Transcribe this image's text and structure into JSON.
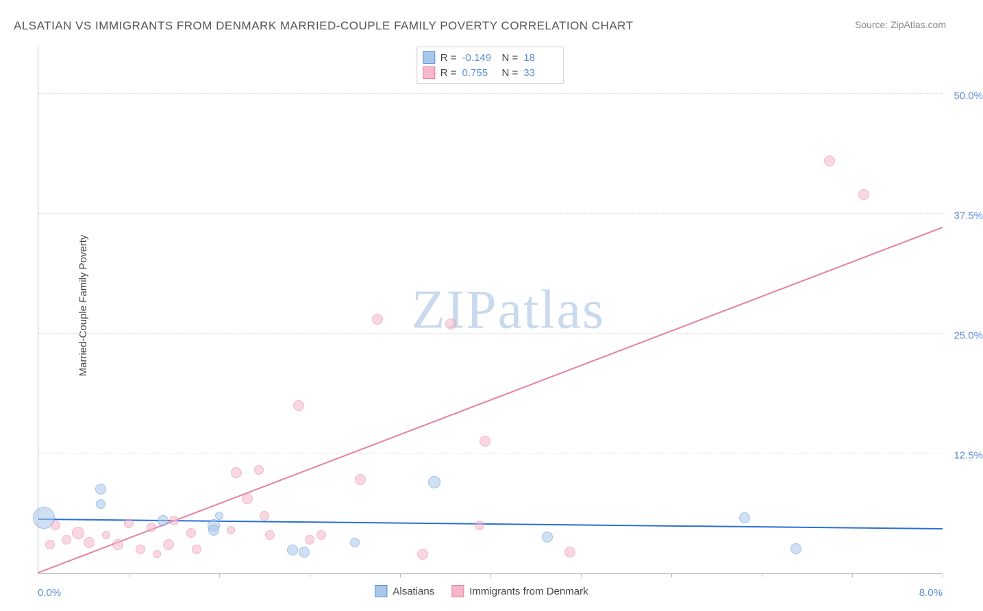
{
  "title": "ALSATIAN VS IMMIGRANTS FROM DENMARK MARRIED-COUPLE FAMILY POVERTY CORRELATION CHART",
  "source": "Source: ZipAtlas.com",
  "watermark": "ZIPatlas",
  "y_axis_title": "Married-Couple Family Poverty",
  "chart": {
    "type": "scatter",
    "xlim": [
      0,
      8.0
    ],
    "ylim": [
      0,
      55.0
    ],
    "x_origin_label": "0.0%",
    "x_max_label": "8.0%",
    "y_ticks": [
      {
        "pos": 12.5,
        "label": "12.5%"
      },
      {
        "pos": 25.0,
        "label": "25.0%"
      },
      {
        "pos": 37.5,
        "label": "37.5%"
      },
      {
        "pos": 50.0,
        "label": "50.0%"
      }
    ],
    "x_tick_positions": [
      0.8,
      1.6,
      2.4,
      3.2,
      4.0,
      4.8,
      5.6,
      6.4,
      7.2,
      8.0
    ],
    "background_color": "#ffffff",
    "grid_color": "#dddddd",
    "series": [
      {
        "name": "Alsatians",
        "fill": "#a9c7eb",
        "stroke": "#5b8dd6",
        "fill_opacity": 0.55,
        "trend_color": "#2a6fd6",
        "trend_y_start": 5.6,
        "trend_y_end": 4.6,
        "R": "-0.149",
        "N": "18",
        "points": [
          {
            "x": 0.05,
            "y": 5.8,
            "r": 16
          },
          {
            "x": 0.55,
            "y": 8.8,
            "r": 8
          },
          {
            "x": 0.55,
            "y": 7.2,
            "r": 7
          },
          {
            "x": 1.1,
            "y": 5.5,
            "r": 8
          },
          {
            "x": 1.55,
            "y": 5.0,
            "r": 9
          },
          {
            "x": 1.55,
            "y": 4.5,
            "r": 8
          },
          {
            "x": 1.6,
            "y": 6.0,
            "r": 6
          },
          {
            "x": 2.25,
            "y": 2.4,
            "r": 8
          },
          {
            "x": 2.35,
            "y": 2.2,
            "r": 8
          },
          {
            "x": 2.8,
            "y": 3.2,
            "r": 7
          },
          {
            "x": 3.5,
            "y": 9.5,
            "r": 9
          },
          {
            "x": 4.5,
            "y": 3.8,
            "r": 8
          },
          {
            "x": 6.25,
            "y": 5.8,
            "r": 8
          },
          {
            "x": 6.7,
            "y": 2.6,
            "r": 8
          }
        ]
      },
      {
        "name": "Immigrants from Denmark",
        "fill": "#f5b8c8",
        "stroke": "#e87ea0",
        "fill_opacity": 0.55,
        "trend_color": "#e87ea0",
        "trend_y_start": 0.0,
        "trend_y_end": 36.0,
        "R": "0.755",
        "N": "33",
        "points": [
          {
            "x": 0.1,
            "y": 3.0,
            "r": 7
          },
          {
            "x": 0.15,
            "y": 5.0,
            "r": 7
          },
          {
            "x": 0.25,
            "y": 3.5,
            "r": 7
          },
          {
            "x": 0.35,
            "y": 4.2,
            "r": 9
          },
          {
            "x": 0.45,
            "y": 3.2,
            "r": 8
          },
          {
            "x": 0.6,
            "y": 4.0,
            "r": 6
          },
          {
            "x": 0.7,
            "y": 3.0,
            "r": 8
          },
          {
            "x": 0.8,
            "y": 5.2,
            "r": 7
          },
          {
            "x": 0.9,
            "y": 2.5,
            "r": 7
          },
          {
            "x": 1.0,
            "y": 4.8,
            "r": 7
          },
          {
            "x": 1.05,
            "y": 2.0,
            "r": 6
          },
          {
            "x": 1.15,
            "y": 3.0,
            "r": 8
          },
          {
            "x": 1.2,
            "y": 5.5,
            "r": 7
          },
          {
            "x": 1.35,
            "y": 4.2,
            "r": 7
          },
          {
            "x": 1.4,
            "y": 2.5,
            "r": 7
          },
          {
            "x": 1.7,
            "y": 4.5,
            "r": 6
          },
          {
            "x": 1.75,
            "y": 10.5,
            "r": 8
          },
          {
            "x": 1.85,
            "y": 7.8,
            "r": 8
          },
          {
            "x": 1.95,
            "y": 10.8,
            "r": 7
          },
          {
            "x": 2.0,
            "y": 6.0,
            "r": 7
          },
          {
            "x": 2.05,
            "y": 4.0,
            "r": 7
          },
          {
            "x": 2.3,
            "y": 17.5,
            "r": 8
          },
          {
            "x": 2.4,
            "y": 3.5,
            "r": 7
          },
          {
            "x": 2.5,
            "y": 4.0,
            "r": 7
          },
          {
            "x": 2.85,
            "y": 9.8,
            "r": 8
          },
          {
            "x": 3.0,
            "y": 26.5,
            "r": 8
          },
          {
            "x": 3.4,
            "y": 2.0,
            "r": 8
          },
          {
            "x": 3.65,
            "y": 26.0,
            "r": 8
          },
          {
            "x": 3.9,
            "y": 5.0,
            "r": 7
          },
          {
            "x": 3.95,
            "y": 13.8,
            "r": 8
          },
          {
            "x": 4.7,
            "y": 2.2,
            "r": 8
          },
          {
            "x": 7.0,
            "y": 43.0,
            "r": 8
          },
          {
            "x": 7.3,
            "y": 39.5,
            "r": 8
          }
        ]
      }
    ]
  },
  "stats_box_labels": {
    "R": "R =",
    "N": "N ="
  },
  "legend_labels": [
    "Alsatians",
    "Immigrants from Denmark"
  ]
}
